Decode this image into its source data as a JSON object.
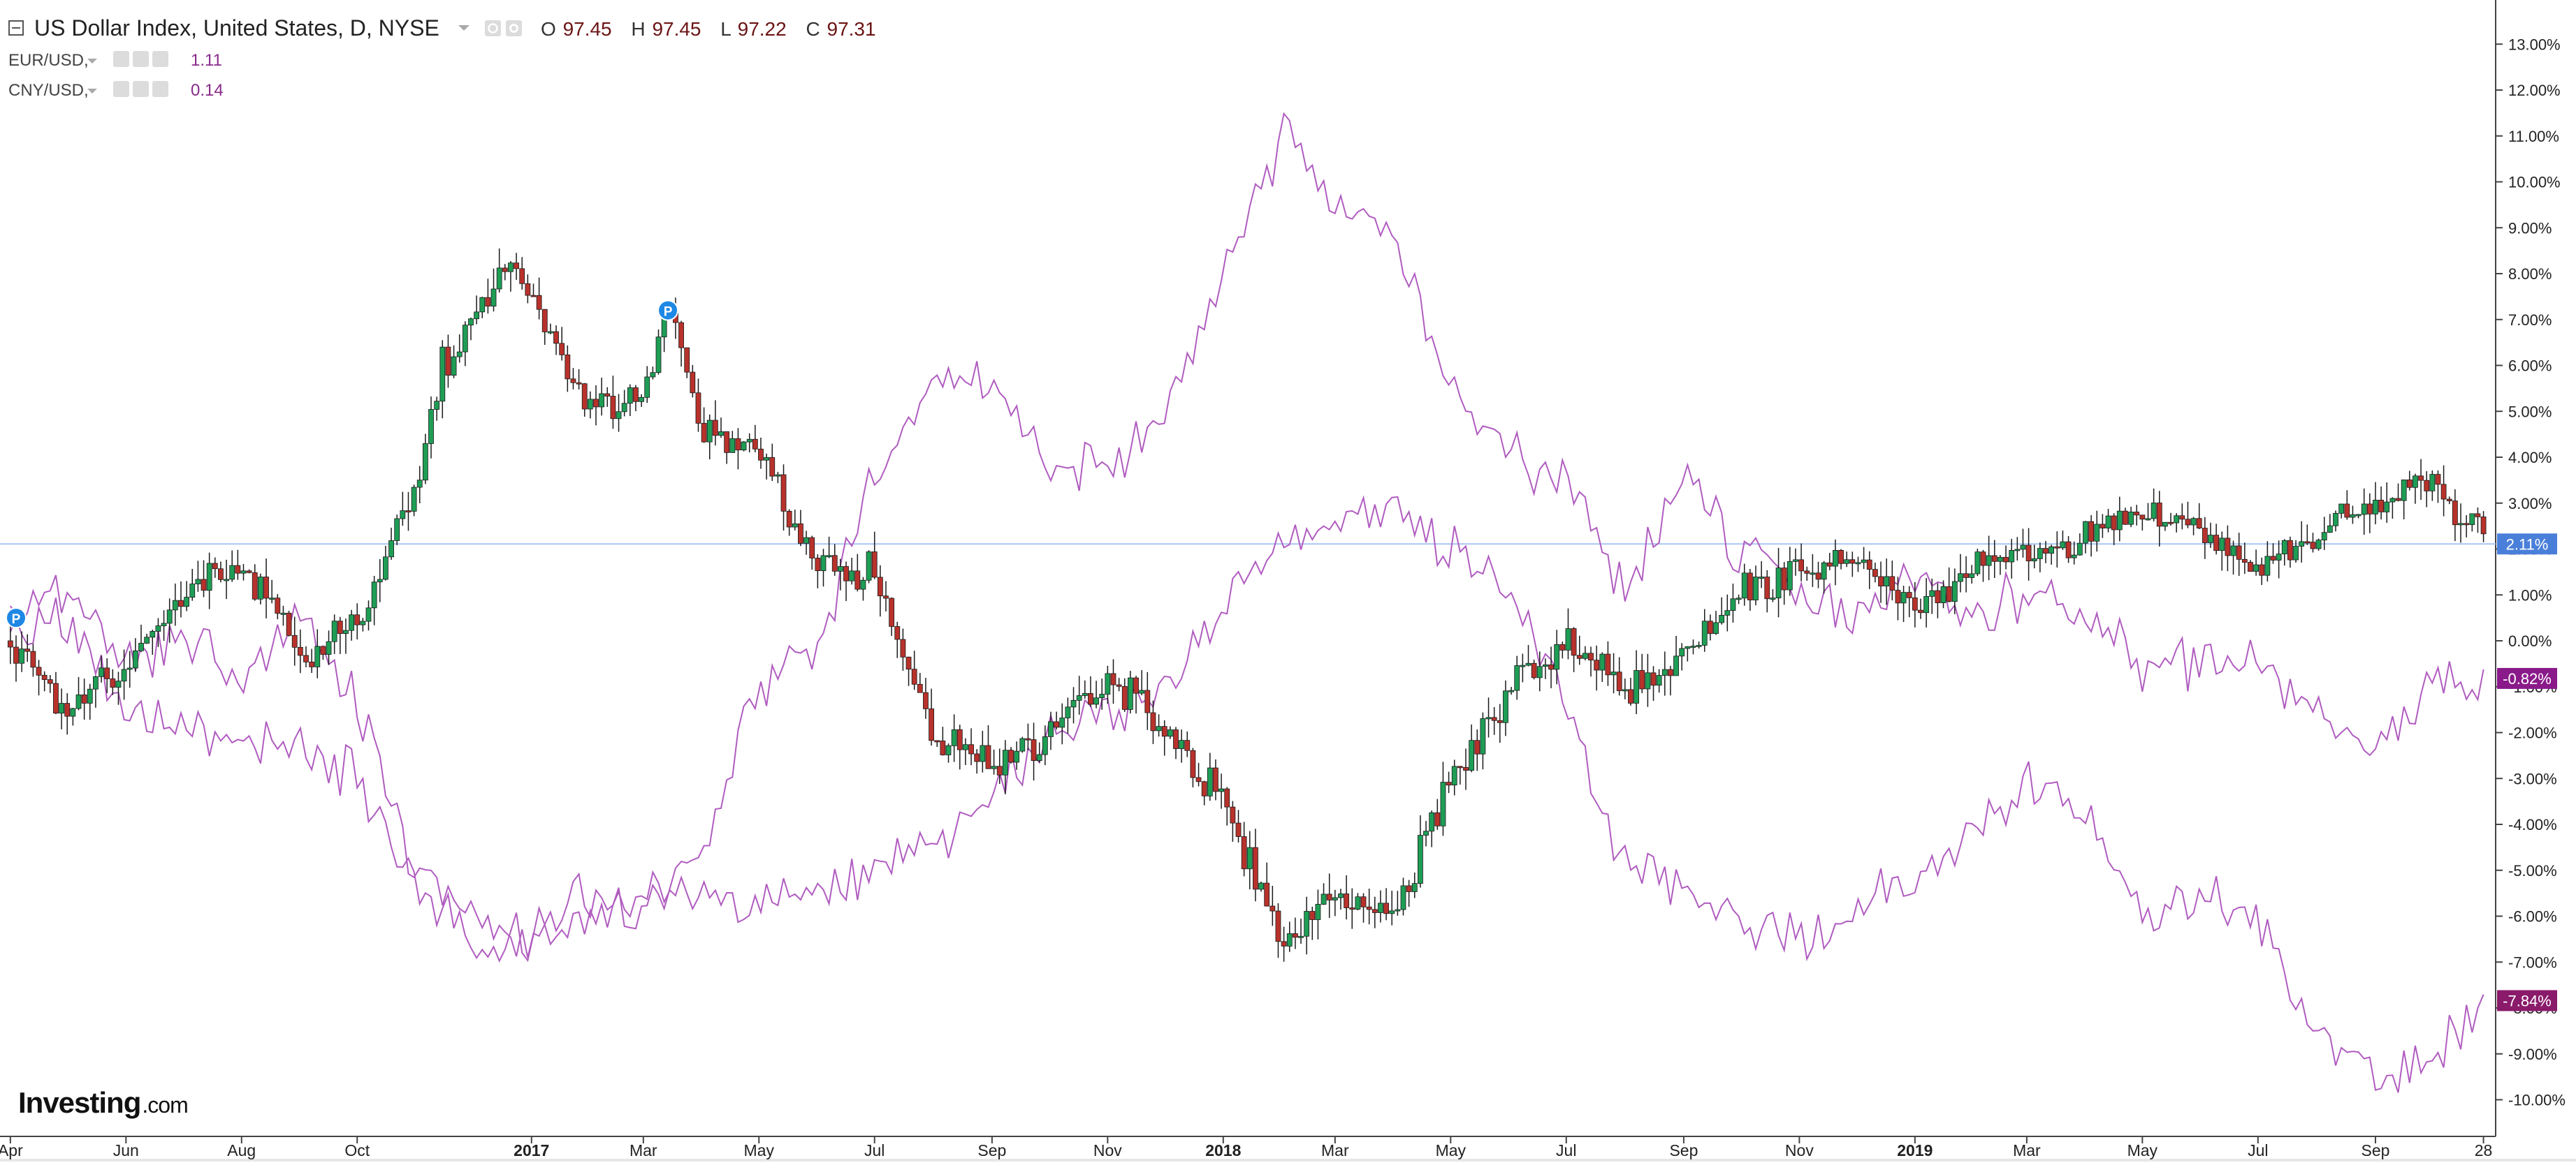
{
  "legend": {
    "main": {
      "name": "US Dollar Index, United States, D, NYSE",
      "open_prefix": "O",
      "open": "97.45",
      "high_prefix": "H",
      "high": "97.45",
      "low_prefix": "L",
      "low": "97.22",
      "close_prefix": "C",
      "close": "97.31"
    },
    "series": [
      {
        "name": "EUR/USD,",
        "value": "1.11"
      },
      {
        "name": "CNY/USD,",
        "value": "0.14"
      }
    ]
  },
  "branding": {
    "logo": "Investing",
    "logo_suffix": ".com"
  },
  "colors": {
    "up": "#1e9e55",
    "down": "#b8322b",
    "wick": "#1a1a1a",
    "compare_line": "#b05cc0",
    "last_dxy": "#4a7fd9",
    "badge_eur": "#8a1a8a",
    "badge_cny": "#8a1a6a",
    "marker": "#1e88e5"
  },
  "markers": [
    {
      "label": "P",
      "date": "2016-04-04",
      "value": 0.5
    },
    {
      "label": "P",
      "date": "2017-03-14",
      "value": 7.2
    }
  ],
  "chart_data": {
    "type": "line",
    "y_unit": "%",
    "ylim": [
      -10.6,
      13.6
    ],
    "xlim": [
      "2016-03-28",
      "2019-10-30"
    ],
    "y_ticks": [
      "13.00%",
      "12.00%",
      "11.00%",
      "10.00%",
      "9.00%",
      "8.00%",
      "7.00%",
      "6.00%",
      "5.00%",
      "4.00%",
      "3.00%",
      "2.00%",
      "1.00%",
      "0.00%",
      "-1.00%",
      "-2.00%",
      "-3.00%",
      "-4.00%",
      "-5.00%",
      "-6.00%",
      "-7.00%",
      "-8.00%",
      "-9.00%",
      "-10.00%"
    ],
    "x_ticks": [
      {
        "label": "Apr",
        "date": "2016-04-01",
        "bold": false
      },
      {
        "label": "Jun",
        "date": "2016-06-01",
        "bold": false
      },
      {
        "label": "Aug",
        "date": "2016-08-01",
        "bold": false
      },
      {
        "label": "Oct",
        "date": "2016-10-01",
        "bold": false
      },
      {
        "label": "2017",
        "date": "2017-01-01",
        "bold": true
      },
      {
        "label": "Mar",
        "date": "2017-03-01",
        "bold": false
      },
      {
        "label": "May",
        "date": "2017-05-01",
        "bold": false
      },
      {
        "label": "Jul",
        "date": "2017-07-01",
        "bold": false
      },
      {
        "label": "Sep",
        "date": "2017-09-01",
        "bold": false
      },
      {
        "label": "Nov",
        "date": "2017-11-01",
        "bold": false
      },
      {
        "label": "2018",
        "date": "2018-01-01",
        "bold": true
      },
      {
        "label": "Mar",
        "date": "2018-03-01",
        "bold": false
      },
      {
        "label": "May",
        "date": "2018-05-01",
        "bold": false
      },
      {
        "label": "Jul",
        "date": "2018-07-01",
        "bold": false
      },
      {
        "label": "Sep",
        "date": "2018-09-01",
        "bold": false
      },
      {
        "label": "Nov",
        "date": "2018-11-01",
        "bold": false
      },
      {
        "label": "2019",
        "date": "2019-01-01",
        "bold": true
      },
      {
        "label": "Mar",
        "date": "2019-03-01",
        "bold": false
      },
      {
        "label": "May",
        "date": "2019-05-01",
        "bold": false
      },
      {
        "label": "Jul",
        "date": "2019-07-01",
        "bold": false
      },
      {
        "label": "Sep",
        "date": "2019-09-01",
        "bold": false
      },
      {
        "label": "28",
        "date": "2019-10-28",
        "bold": false
      }
    ],
    "last_value_labels": [
      {
        "series": "US Dollar Index",
        "value": 2.11,
        "label": "2.11%"
      },
      {
        "series": "EUR/USD",
        "value": -0.82,
        "label": "-0.82%"
      },
      {
        "series": "CNY/USD",
        "value": -7.84,
        "label": "-7.84%"
      }
    ],
    "series": [
      {
        "name": "US Dollar Index",
        "style": "candlestick",
        "x": [
          "2016-04-01",
          "2016-05-01",
          "2016-06-01",
          "2016-07-01",
          "2016-08-01",
          "2016-09-01",
          "2016-10-01",
          "2016-11-01",
          "2016-11-15",
          "2016-12-01",
          "2016-12-20",
          "2017-01-01",
          "2017-02-01",
          "2017-03-01",
          "2017-03-15",
          "2017-04-01",
          "2017-05-01",
          "2017-06-01",
          "2017-07-01",
          "2017-08-01",
          "2017-09-01",
          "2017-10-01",
          "2017-11-01",
          "2017-12-01",
          "2018-01-01",
          "2018-02-01",
          "2018-03-01",
          "2018-04-01",
          "2018-05-01",
          "2018-06-01",
          "2018-07-01",
          "2018-08-01",
          "2018-09-01",
          "2018-10-01",
          "2018-11-01",
          "2018-12-01",
          "2019-01-01",
          "2019-02-01",
          "2019-03-01",
          "2019-04-01",
          "2019-05-01",
          "2019-06-01",
          "2019-07-01",
          "2019-08-01",
          "2019-09-01",
          "2019-10-01",
          "2019-10-28"
        ],
        "y": [
          0.0,
          -1.5,
          -0.5,
          1.0,
          1.8,
          -0.5,
          0.5,
          3.5,
          6.0,
          7.0,
          8.3,
          7.5,
          5.0,
          5.5,
          7.2,
          4.5,
          4.0,
          1.5,
          1.5,
          -2.0,
          -2.8,
          -2.0,
          -0.8,
          -1.8,
          -3.5,
          -6.5,
          -5.5,
          -6.0,
          -3.0,
          -1.0,
          0.0,
          -1.0,
          -0.5,
          1.0,
          1.5,
          1.8,
          0.8,
          1.5,
          1.8,
          2.2,
          2.8,
          2.5,
          1.5,
          2.5,
          3.0,
          3.5,
          2.1
        ]
      },
      {
        "name": "EUR/USD",
        "style": "line",
        "x": [
          "2016-04-01",
          "2016-05-01",
          "2016-06-01",
          "2016-07-01",
          "2016-08-01",
          "2016-09-01",
          "2016-10-01",
          "2016-11-01",
          "2016-12-01",
          "2017-01-01",
          "2017-02-01",
          "2017-03-01",
          "2017-04-01",
          "2017-05-01",
          "2017-06-01",
          "2017-07-01",
          "2017-08-01",
          "2017-09-01",
          "2017-10-01",
          "2017-11-01",
          "2017-12-01",
          "2018-01-01",
          "2018-02-01",
          "2018-03-01",
          "2018-04-01",
          "2018-05-01",
          "2018-06-01",
          "2018-07-01",
          "2018-08-01",
          "2018-09-01",
          "2018-10-01",
          "2018-11-01",
          "2018-12-01",
          "2019-01-01",
          "2019-02-01",
          "2019-03-01",
          "2019-04-01",
          "2019-05-01",
          "2019-06-01",
          "2019-07-01",
          "2019-08-01",
          "2019-09-01",
          "2019-10-01",
          "2019-10-28"
        ],
        "y": [
          0.5,
          1.0,
          -0.5,
          0.2,
          -1.0,
          0.5,
          -1.5,
          -5.0,
          -6.0,
          -6.5,
          -5.5,
          -6.0,
          -4.5,
          -1.0,
          0.0,
          3.5,
          6.0,
          5.5,
          4.0,
          3.5,
          5.0,
          8.0,
          11.0,
          9.5,
          9.0,
          5.5,
          4.0,
          3.5,
          1.0,
          3.5,
          2.0,
          1.0,
          0.5,
          1.5,
          0.5,
          1.0,
          0.5,
          -0.5,
          -0.5,
          -0.5,
          -1.5,
          -2.5,
          -1.0,
          -0.82
        ]
      },
      {
        "name": "CNY/USD",
        "style": "line",
        "x": [
          "2016-04-01",
          "2016-05-01",
          "2016-06-01",
          "2016-07-01",
          "2016-08-01",
          "2016-09-01",
          "2016-10-01",
          "2016-11-01",
          "2016-12-01",
          "2017-01-01",
          "2017-02-01",
          "2017-03-01",
          "2017-04-01",
          "2017-05-01",
          "2017-06-01",
          "2017-07-01",
          "2017-08-01",
          "2017-09-01",
          "2017-10-01",
          "2017-11-01",
          "2017-12-01",
          "2018-01-01",
          "2018-02-01",
          "2018-03-01",
          "2018-04-01",
          "2018-05-01",
          "2018-06-01",
          "2018-07-01",
          "2018-08-01",
          "2018-09-01",
          "2018-10-01",
          "2018-11-01",
          "2018-12-01",
          "2019-01-01",
          "2019-02-01",
          "2019-03-01",
          "2019-04-01",
          "2019-05-01",
          "2019-06-01",
          "2019-07-01",
          "2019-08-01",
          "2019-09-01",
          "2019-10-01",
          "2019-10-28"
        ],
        "y": [
          0.0,
          0.5,
          -1.5,
          -2.0,
          -2.0,
          -2.5,
          -3.0,
          -5.5,
          -6.5,
          -6.5,
          -6.0,
          -5.5,
          -5.5,
          -5.8,
          -5.5,
          -5.0,
          -4.5,
          -3.5,
          -2.0,
          -1.5,
          -1.0,
          1.0,
          2.5,
          2.5,
          3.0,
          2.0,
          1.0,
          -1.5,
          -5.0,
          -5.5,
          -6.0,
          -6.5,
          -6.0,
          -5.0,
          -4.0,
          -3.0,
          -3.5,
          -6.0,
          -5.5,
          -6.0,
          -8.5,
          -9.5,
          -9.0,
          -7.84
        ]
      }
    ]
  }
}
